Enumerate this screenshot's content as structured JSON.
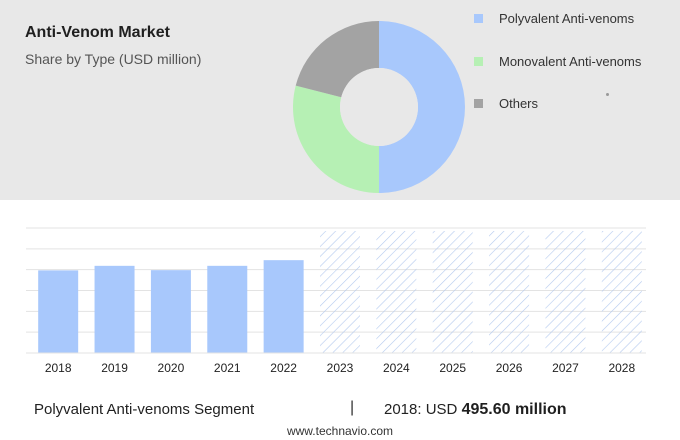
{
  "header": {
    "title": "Anti-Venom Market",
    "subtitle": "Share by Type (USD million)"
  },
  "colors": {
    "polyvalent": "#a8c8fc",
    "monovalent": "#b6f0b4",
    "others": "#a3a3a3",
    "bar": "#a8c8fc",
    "forecast_hatch": "#b4c9ee"
  },
  "chart_data": [
    {
      "type": "pie",
      "title": "Anti-Venom Market",
      "subtitle": "Share by Type (USD million)",
      "donut": true,
      "legend_position": "right",
      "categories": [
        "Polyvalent Anti-venoms",
        "Monovalent Anti-venoms",
        "Others"
      ],
      "values": [
        50,
        29,
        21
      ]
    },
    {
      "type": "bar",
      "categories": [
        "2018",
        "2019",
        "2020",
        "2021",
        "2022",
        "2023",
        "2024",
        "2025",
        "2026",
        "2027",
        "2028"
      ],
      "values": [
        495.6,
        523,
        497,
        523,
        557,
        null,
        null,
        null,
        null,
        null,
        null
      ],
      "forecast_years": [
        "2023",
        "2024",
        "2025",
        "2026",
        "2027",
        "2028"
      ],
      "ylim": [
        0,
        750
      ],
      "grid": true,
      "ylabel": "",
      "xlabel": ""
    }
  ],
  "footer": {
    "segment_label": "Polyvalent Anti-venoms Segment",
    "separator": "|",
    "year": "2018",
    "value_prefix": ": USD ",
    "value": "495.60 million"
  },
  "source": "www.technavio.com"
}
